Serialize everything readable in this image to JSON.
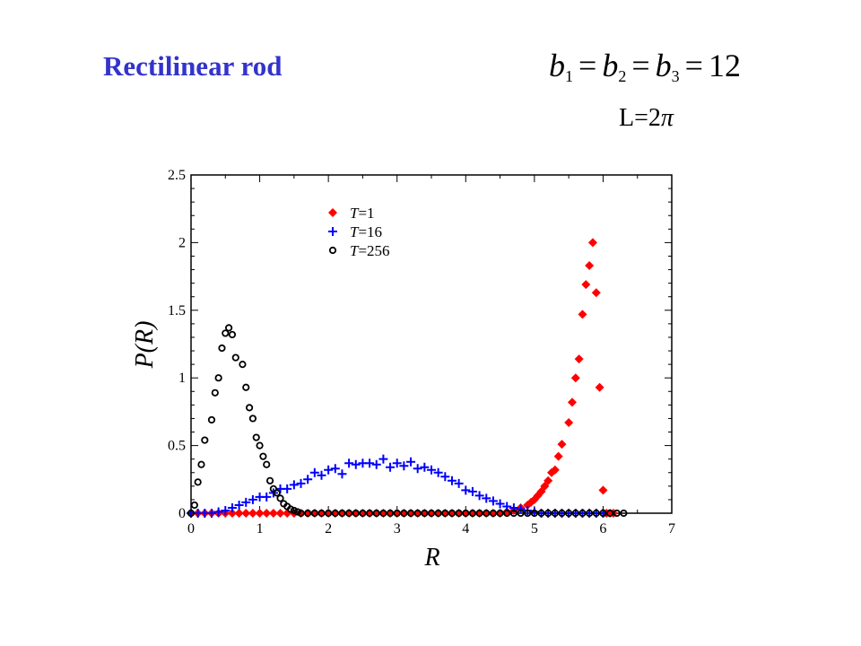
{
  "slide": {
    "title": "Rectilinear rod",
    "equation": {
      "b1": "b",
      "b1_sub": "1",
      "b2": "b",
      "b2_sub": "2",
      "b3": "b",
      "b3_sub": "3",
      "eq": "=",
      "value": "12"
    },
    "length_label": {
      "prefix": "L=2",
      "symbol": "π"
    }
  },
  "colors": {
    "title": "#3333cc",
    "T1": "#ff0000",
    "T16": "#0000ff",
    "T256": "#000000"
  },
  "chart_data": {
    "type": "scatter",
    "xlabel": "R",
    "ylabel": "P(R)",
    "xlim": [
      0,
      7
    ],
    "ylim": [
      0,
      2.5
    ],
    "xticks": [
      "0",
      "1",
      "2",
      "3",
      "4",
      "5",
      "6",
      "7"
    ],
    "yticks": [
      "0",
      "0.5",
      "1",
      "1.5",
      "2",
      "2.5"
    ],
    "grid": false,
    "legend_position": "top-center",
    "series": [
      {
        "name": "T=1",
        "legend_var": "T",
        "legend_val": "=1",
        "marker": "diamond",
        "color": "#ff0000",
        "x": [
          0.0,
          0.1,
          0.2,
          0.3,
          0.4,
          0.5,
          0.6,
          0.7,
          0.8,
          0.9,
          1.0,
          1.1,
          1.2,
          1.3,
          1.4,
          1.5,
          1.6,
          1.7,
          1.8,
          1.9,
          2.0,
          2.1,
          2.2,
          2.3,
          2.4,
          2.5,
          2.6,
          2.7,
          2.8,
          2.9,
          3.0,
          3.1,
          3.2,
          3.3,
          3.4,
          3.5,
          3.6,
          3.7,
          3.8,
          3.9,
          4.0,
          4.1,
          4.2,
          4.3,
          4.4,
          4.5,
          4.6,
          4.7,
          4.8,
          4.9,
          4.95,
          5.0,
          5.05,
          5.1,
          5.15,
          5.2,
          5.25,
          5.3,
          5.35,
          5.4,
          5.5,
          5.55,
          5.6,
          5.65,
          5.7,
          5.75,
          5.8,
          5.85,
          5.9,
          5.95,
          6.0,
          6.05,
          6.1,
          6.15
        ],
        "y": [
          0.0,
          0.0,
          0.0,
          0.0,
          0.0,
          0.0,
          0.0,
          0.0,
          0.0,
          0.0,
          0.0,
          0.0,
          0.0,
          0.0,
          0.0,
          0.0,
          0.0,
          0.0,
          0.0,
          0.0,
          0.0,
          0.0,
          0.0,
          0.0,
          0.0,
          0.0,
          0.0,
          0.0,
          0.0,
          0.0,
          0.0,
          0.0,
          0.0,
          0.0,
          0.0,
          0.0,
          0.0,
          0.0,
          0.0,
          0.0,
          0.0,
          0.0,
          0.0,
          0.0,
          0.0,
          0.0,
          0.01,
          0.02,
          0.04,
          0.06,
          0.08,
          0.1,
          0.13,
          0.16,
          0.2,
          0.24,
          0.3,
          0.32,
          0.42,
          0.51,
          0.67,
          0.82,
          1.0,
          1.14,
          1.47,
          1.69,
          1.83,
          2.0,
          1.63,
          0.93,
          0.17,
          0.0,
          0.0,
          0.0
        ]
      },
      {
        "name": "T=16",
        "legend_var": "T",
        "legend_val": "=16",
        "marker": "plus",
        "color": "#0000ff",
        "x": [
          0.0,
          0.1,
          0.2,
          0.3,
          0.4,
          0.5,
          0.6,
          0.7,
          0.8,
          0.9,
          1.0,
          1.1,
          1.2,
          1.3,
          1.4,
          1.5,
          1.6,
          1.7,
          1.8,
          1.9,
          2.0,
          2.1,
          2.2,
          2.3,
          2.4,
          2.5,
          2.6,
          2.7,
          2.8,
          2.9,
          3.0,
          3.1,
          3.2,
          3.3,
          3.4,
          3.5,
          3.6,
          3.7,
          3.8,
          3.9,
          4.0,
          4.1,
          4.2,
          4.3,
          4.4,
          4.5,
          4.6,
          4.7,
          4.8,
          4.9,
          5.0,
          5.1,
          5.2,
          5.3,
          5.4,
          5.5,
          5.6,
          5.7,
          5.8,
          5.9,
          6.0
        ],
        "y": [
          0.0,
          0.0,
          0.0,
          0.0,
          0.01,
          0.02,
          0.04,
          0.06,
          0.08,
          0.1,
          0.12,
          0.12,
          0.15,
          0.18,
          0.18,
          0.21,
          0.22,
          0.25,
          0.3,
          0.28,
          0.32,
          0.33,
          0.29,
          0.37,
          0.36,
          0.37,
          0.37,
          0.36,
          0.4,
          0.34,
          0.37,
          0.35,
          0.38,
          0.33,
          0.34,
          0.32,
          0.3,
          0.27,
          0.24,
          0.22,
          0.17,
          0.16,
          0.13,
          0.11,
          0.09,
          0.07,
          0.05,
          0.04,
          0.03,
          0.02,
          0.01,
          0.0,
          0.0,
          0.0,
          0.0,
          0.0,
          0.0,
          0.0,
          0.0,
          0.0,
          0.0
        ]
      },
      {
        "name": "T=256",
        "legend_var": "T",
        "legend_val": "=256",
        "marker": "open-circle",
        "color": "#000000",
        "x": [
          0.0,
          0.05,
          0.1,
          0.15,
          0.2,
          0.3,
          0.35,
          0.4,
          0.45,
          0.5,
          0.55,
          0.6,
          0.65,
          0.75,
          0.8,
          0.85,
          0.9,
          0.95,
          1.0,
          1.05,
          1.1,
          1.15,
          1.2,
          1.25,
          1.3,
          1.35,
          1.4,
          1.45,
          1.5,
          1.55,
          1.6,
          1.7,
          1.8,
          1.9,
          2.0,
          2.1,
          2.2,
          2.3,
          2.4,
          2.5,
          2.6,
          2.7,
          2.8,
          2.9,
          3.0,
          3.1,
          3.2,
          3.3,
          3.4,
          3.5,
          3.6,
          3.7,
          3.8,
          3.9,
          4.0,
          4.1,
          4.2,
          4.3,
          4.4,
          4.5,
          4.6,
          4.7,
          4.8,
          4.9,
          5.0,
          5.1,
          5.2,
          5.3,
          5.4,
          5.5,
          5.6,
          5.7,
          5.8,
          5.9,
          6.0,
          6.1,
          6.2,
          6.3
        ],
        "y": [
          0.0,
          0.06,
          0.23,
          0.36,
          0.54,
          0.69,
          0.89,
          1.0,
          1.22,
          1.33,
          1.37,
          1.32,
          1.15,
          1.1,
          0.93,
          0.78,
          0.7,
          0.56,
          0.5,
          0.42,
          0.36,
          0.24,
          0.18,
          0.15,
          0.11,
          0.07,
          0.05,
          0.03,
          0.02,
          0.01,
          0.0,
          0.0,
          0.0,
          0.0,
          0.0,
          0.0,
          0.0,
          0.0,
          0.0,
          0.0,
          0.0,
          0.0,
          0.0,
          0.0,
          0.0,
          0.0,
          0.0,
          0.0,
          0.0,
          0.0,
          0.0,
          0.0,
          0.0,
          0.0,
          0.0,
          0.0,
          0.0,
          0.0,
          0.0,
          0.0,
          0.0,
          0.0,
          0.0,
          0.0,
          0.0,
          0.0,
          0.0,
          0.0,
          0.0,
          0.0,
          0.0,
          0.0,
          0.0,
          0.0,
          0.0,
          0.0,
          0.0,
          0.0
        ]
      }
    ]
  }
}
